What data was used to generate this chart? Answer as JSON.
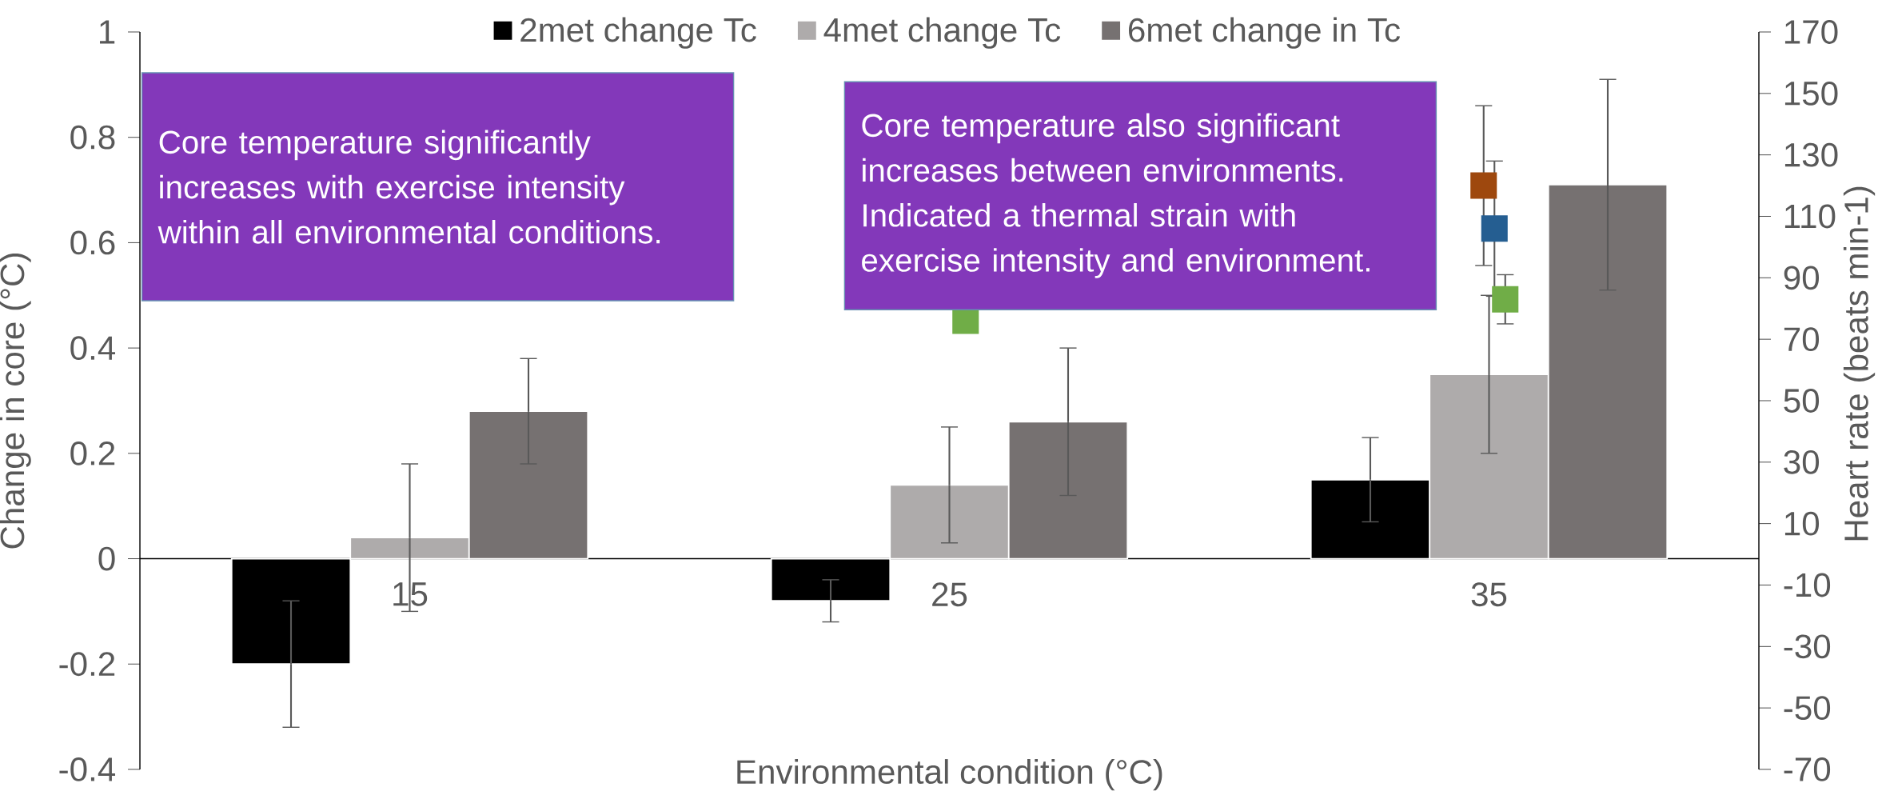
{
  "chart_data": {
    "type": "bar",
    "xlabel": "Environmental condition (°C)",
    "ylabel": "Change in core (°C)",
    "y2label": "Heart rate (beats min-1)",
    "categories": [
      "15",
      "25",
      "35"
    ],
    "series": [
      {
        "name": "2met change Tc",
        "color": "#000000",
        "values": [
          -0.2,
          -0.08,
          0.15
        ],
        "errors": [
          0.12,
          0.04,
          0.08
        ]
      },
      {
        "name": "4met change Tc",
        "color": "#aeabab",
        "values": [
          0.04,
          0.14,
          0.35
        ],
        "errors": [
          0.14,
          0.11,
          0.15
        ]
      },
      {
        "name": "6met change in Tc",
        "color": "#767171",
        "values": [
          0.28,
          0.26,
          0.71
        ],
        "errors": [
          0.1,
          0.14,
          0.2
        ]
      },
      {
        "type": "scatter",
        "axis": "y2",
        "color": "#9e480e",
        "values": [
          null,
          null,
          120
        ],
        "errors": [
          null,
          null,
          26
        ]
      },
      {
        "type": "scatter",
        "axis": "y2",
        "color": "#255e91",
        "values": [
          null,
          null,
          106
        ],
        "errors": [
          null,
          null,
          22
        ]
      },
      {
        "type": "scatter",
        "axis": "y2",
        "color": "#70ad47",
        "values": [
          null,
          76,
          83
        ],
        "errors": [
          null,
          null,
          8
        ]
      }
    ],
    "ylim": [
      -0.4,
      1
    ],
    "yticks": [
      -0.4,
      -0.2,
      0,
      0.2,
      0.4,
      0.6,
      0.8,
      1
    ],
    "y2lim": [
      -70,
      170
    ],
    "y2ticks": [
      -70,
      -50,
      -30,
      -10,
      10,
      30,
      50,
      70,
      90,
      110,
      130,
      150,
      170
    ],
    "legend": "top",
    "marker": "square",
    "annotations": [
      "Core temperature significantly increases with exercise intensity within all environmental conditions.",
      "Core temperature also significant increases between environments. Indicated a thermal strain with exercise intensity and environment."
    ]
  }
}
